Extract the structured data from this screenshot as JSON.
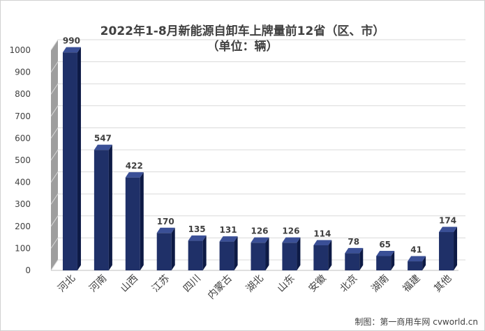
{
  "chart_data": {
    "type": "bar",
    "title": "2022年1-8月新能源自卸车上牌量前12省（区、市）",
    "subtitle": "（单位：辆）",
    "categories": [
      "河北",
      "河南",
      "山西",
      "江苏",
      "四川",
      "内蒙古",
      "湖北",
      "山东",
      "安徽",
      "北京",
      "湖南",
      "福建",
      "其他"
    ],
    "values": [
      990,
      547,
      422,
      170,
      135,
      131,
      126,
      126,
      114,
      78,
      65,
      41,
      174
    ],
    "ylim": [
      0,
      1000
    ],
    "yticks": [
      0,
      100,
      200,
      300,
      400,
      500,
      600,
      700,
      800,
      900,
      1000
    ],
    "grid": true,
    "bar_color": "#1f3068",
    "bar_side_color": "#0d1a45",
    "bar_top_color": "#3a4f96",
    "wall_color": "#9e9e9e"
  },
  "footer": {
    "credit": "制图：第一商用车网 cvworld.cn"
  }
}
